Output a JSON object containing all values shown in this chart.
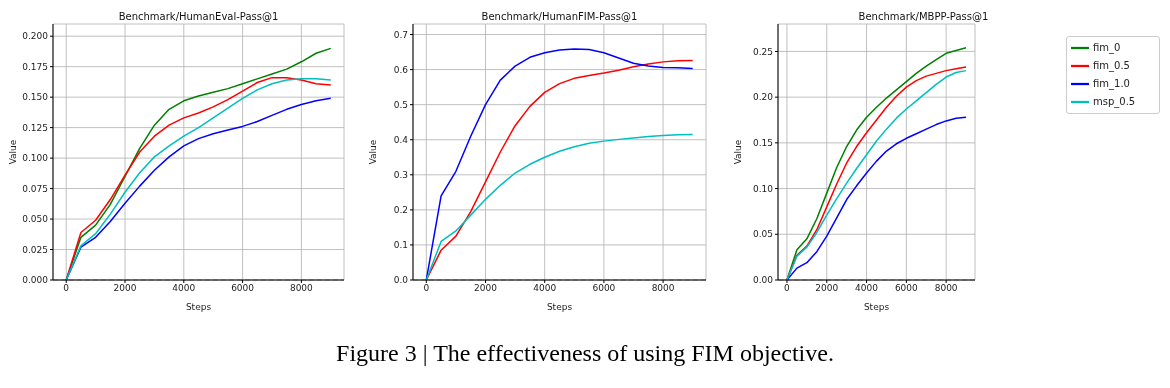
{
  "chart_data": [
    {
      "type": "line",
      "title": "Benchmark/HumanEval-Pass@1",
      "xlabel": "Steps",
      "ylabel": "Value",
      "x": [
        0,
        500,
        1000,
        1500,
        2000,
        2500,
        3000,
        3500,
        4000,
        4500,
        5000,
        5500,
        6000,
        6500,
        7000,
        7500,
        8000,
        8500,
        9000
      ],
      "xlim": [
        -450,
        9450
      ],
      "xticks": [
        0,
        2000,
        4000,
        6000,
        8000
      ],
      "ylim": [
        0,
        0.21
      ],
      "yticks": [
        {
          "value": 0,
          "label": "0.000"
        },
        0.025,
        {
          "value": 0.05,
          "label": "0.050"
        },
        0.075,
        {
          "value": 0.1,
          "label": "0.100"
        },
        0.125,
        {
          "value": 0.15,
          "label": "0.150"
        },
        0.175,
        {
          "value": 0.2,
          "label": "0.200"
        }
      ],
      "grid": true,
      "legend": false,
      "line_style": "solid",
      "marker": "none",
      "ref_lines": [
        {
          "axis": "y",
          "value": 0,
          "color": "#a0a0a0",
          "line_style": "dashed"
        }
      ],
      "annotations": [
        "Figure 3 | The effectiveness of using FIM objective."
      ],
      "series": [
        {
          "color": "#008000",
          "values": [
            0,
            0.035,
            0.045,
            0.062,
            0.085,
            0.108,
            0.127,
            0.14,
            0.147,
            0.151,
            0.154,
            0.157,
            0.161,
            0.165,
            0.169,
            0.173,
            0.179,
            0.186,
            0.19
          ]
        },
        {
          "color": "#ff0000",
          "values": [
            0,
            0.039,
            0.049,
            0.066,
            0.086,
            0.105,
            0.118,
            0.127,
            0.133,
            0.137,
            0.142,
            0.148,
            0.155,
            0.162,
            0.166,
            0.166,
            0.164,
            0.161,
            0.16
          ]
        },
        {
          "color": "#0000ff",
          "values": [
            0,
            0.027,
            0.035,
            0.048,
            0.063,
            0.077,
            0.09,
            0.101,
            0.11,
            0.116,
            0.12,
            0.123,
            0.126,
            0.13,
            0.135,
            0.14,
            0.144,
            0.147,
            0.149
          ]
        },
        {
          "color": "#00bfbf",
          "values": [
            0,
            0.028,
            0.038,
            0.054,
            0.072,
            0.088,
            0.101,
            0.11,
            0.118,
            0.125,
            0.133,
            0.141,
            0.149,
            0.156,
            0.161,
            0.164,
            0.165,
            0.165,
            0.164
          ]
        }
      ]
    },
    {
      "type": "line",
      "title": "Benchmark/HumanFIM-Pass@1",
      "xlabel": "Steps",
      "ylabel": "Value",
      "x": [
        0,
        500,
        1000,
        1500,
        2000,
        2500,
        3000,
        3500,
        4000,
        4500,
        5000,
        5500,
        6000,
        6500,
        7000,
        7500,
        8000,
        8500,
        9000
      ],
      "xlim": [
        -450,
        9450
      ],
      "xticks": [
        0,
        2000,
        4000,
        6000,
        8000
      ],
      "ylim": [
        0,
        0.73
      ],
      "yticks": [
        {
          "value": 0,
          "label": "0.0"
        },
        0.1,
        0.2,
        0.3,
        0.4,
        0.5,
        0.6,
        0.7
      ],
      "grid": true,
      "legend": false,
      "line_style": "solid",
      "marker": "none",
      "ref_lines": [
        {
          "axis": "y",
          "value": 0,
          "color": "#a0a0a0",
          "line_style": "dashed"
        }
      ],
      "series": [
        {
          "color": "#ff0000",
          "values": [
            0,
            0.085,
            0.125,
            0.195,
            0.28,
            0.365,
            0.44,
            0.495,
            0.535,
            0.56,
            0.575,
            0.583,
            0.59,
            0.598,
            0.608,
            0.616,
            0.622,
            0.625,
            0.626
          ]
        },
        {
          "color": "#0000ff",
          "values": [
            0,
            0.24,
            0.31,
            0.41,
            0.5,
            0.57,
            0.61,
            0.635,
            0.648,
            0.656,
            0.659,
            0.657,
            0.648,
            0.633,
            0.618,
            0.61,
            0.606,
            0.605,
            0.603
          ]
        },
        {
          "color": "#00bfbf",
          "values": [
            0,
            0.11,
            0.14,
            0.185,
            0.23,
            0.27,
            0.305,
            0.33,
            0.35,
            0.367,
            0.38,
            0.39,
            0.396,
            0.401,
            0.405,
            0.409,
            0.412,
            0.414,
            0.415
          ]
        }
      ]
    },
    {
      "type": "line",
      "title": "Benchmark/MBPP-Pass@1",
      "xlabel": "Steps",
      "ylabel": "Value",
      "x": [
        0,
        500,
        1000,
        1500,
        2000,
        2500,
        3000,
        3500,
        4000,
        4500,
        5000,
        5500,
        6000,
        6500,
        7000,
        7500,
        8000,
        8500,
        9000
      ],
      "xlim": [
        -450,
        9450
      ],
      "xticks": [
        0,
        2000,
        4000,
        6000,
        8000
      ],
      "ylim": [
        0,
        0.28
      ],
      "yticks": [
        {
          "value": 0,
          "label": "0.00"
        },
        0.05,
        {
          "value": 0.1,
          "label": "0.10"
        },
        0.15,
        {
          "value": 0.2,
          "label": "0.20"
        },
        0.25
      ],
      "grid": true,
      "legend": "right",
      "line_style": "solid",
      "marker": "none",
      "ref_lines": [
        {
          "axis": "y",
          "value": 0,
          "color": "#a0a0a0",
          "line_style": "dashed"
        }
      ],
      "series": [
        {
          "name": "fim_0",
          "color": "#008000",
          "values": [
            0,
            0.033,
            0.045,
            0.067,
            0.095,
            0.123,
            0.146,
            0.164,
            0.178,
            0.189,
            0.199,
            0.208,
            0.217,
            0.226,
            0.234,
            0.241,
            0.248,
            0.251,
            0.254
          ]
        },
        {
          "name": "fim_0.5",
          "color": "#ff0000",
          "values": [
            0,
            0.027,
            0.037,
            0.055,
            0.08,
            0.105,
            0.128,
            0.146,
            0.161,
            0.175,
            0.189,
            0.201,
            0.211,
            0.218,
            0.223,
            0.226,
            0.229,
            0.231,
            0.233
          ]
        },
        {
          "name": "fim_1.0",
          "color": "#0000ff",
          "values": [
            0,
            0.013,
            0.019,
            0.031,
            0.048,
            0.068,
            0.088,
            0.103,
            0.117,
            0.13,
            0.141,
            0.149,
            0.155,
            0.16,
            0.165,
            0.17,
            0.174,
            0.177,
            0.178
          ]
        },
        {
          "name": "msp_0.5",
          "color": "#00bfbf",
          "values": [
            0,
            0.026,
            0.036,
            0.052,
            0.071,
            0.089,
            0.106,
            0.122,
            0.137,
            0.152,
            0.165,
            0.177,
            0.187,
            0.196,
            0.205,
            0.214,
            0.222,
            0.227,
            0.229
          ]
        }
      ]
    }
  ]
}
